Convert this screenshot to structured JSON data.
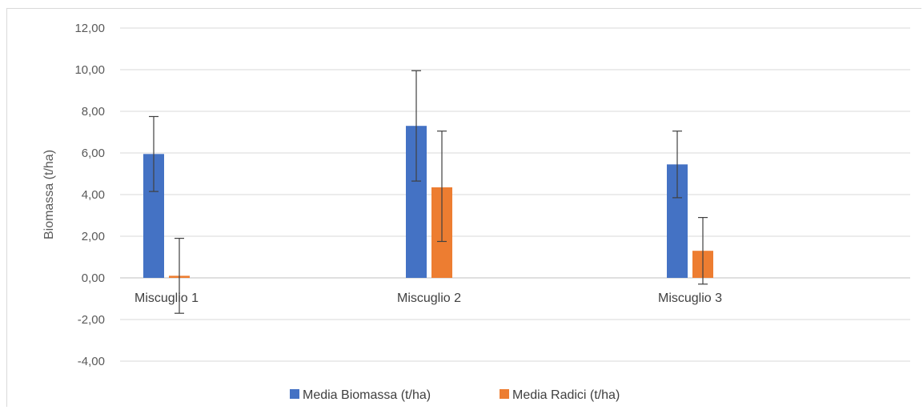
{
  "chart_data": {
    "type": "bar",
    "categories": [
      "Miscuglio 1",
      "Miscuglio 2",
      "Miscuglio 3"
    ],
    "series": [
      {
        "name": "Media Biomassa (t/ha)",
        "color": "#4472C4",
        "values": [
          5.95,
          7.3,
          5.45
        ],
        "error_low": [
          4.15,
          4.65,
          3.85
        ],
        "error_high": [
          7.75,
          9.95,
          7.05
        ]
      },
      {
        "name": "Media Radici (t/ha)",
        "color": "#ED7D31",
        "values": [
          0.1,
          4.35,
          1.3
        ],
        "error_low": [
          -1.7,
          1.75,
          -0.3
        ],
        "error_high": [
          1.9,
          7.05,
          2.9
        ]
      }
    ],
    "ylabel": "Biomassa (t/ha)",
    "ylim": [
      -4,
      12
    ],
    "yticks": [
      "12,00",
      "10,00",
      "8,00",
      "6,00",
      "4,00",
      "2,00",
      "0,00",
      "-2,00",
      "-4,00"
    ],
    "ytick_values": [
      12,
      10,
      8,
      6,
      4,
      2,
      0,
      -2,
      -4
    ],
    "grid": true,
    "legend_position": "bottom"
  }
}
